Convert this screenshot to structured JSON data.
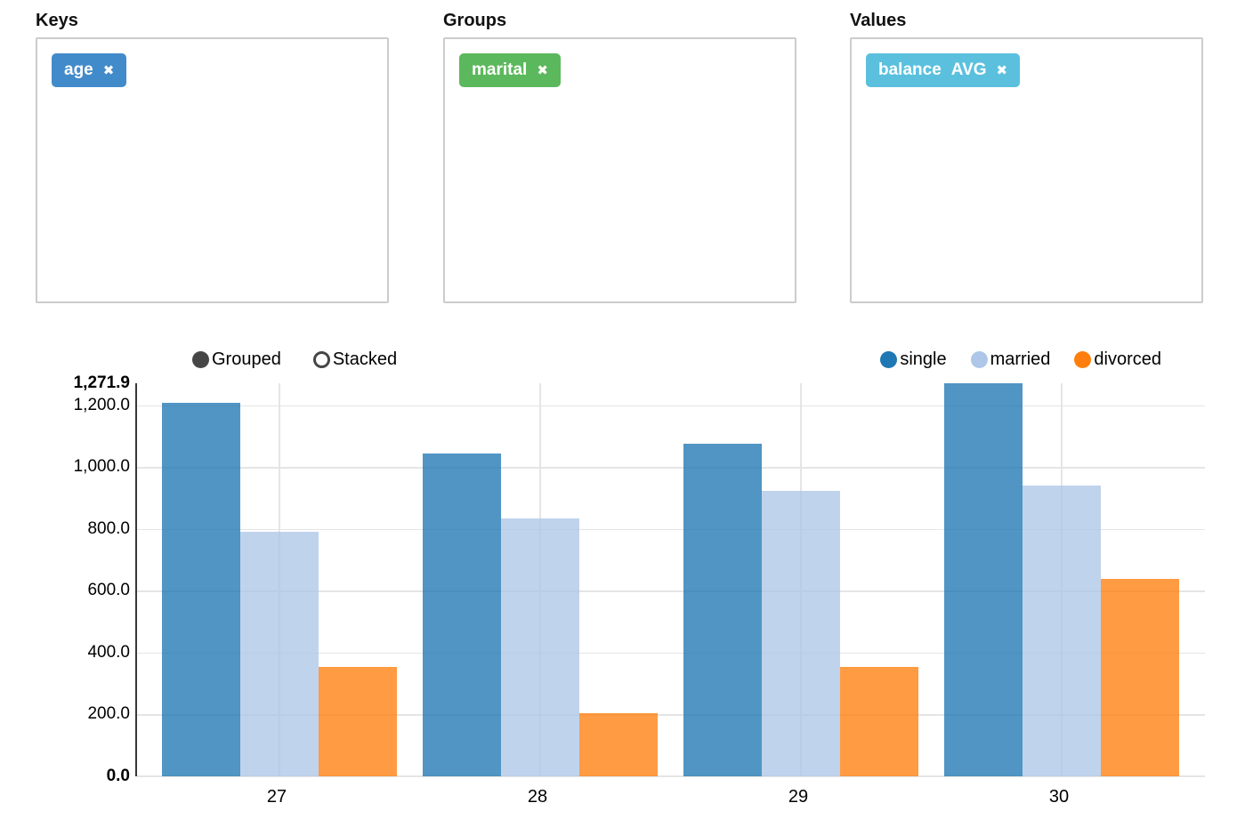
{
  "icons": {
    "remove": "✖"
  },
  "panels": [
    {
      "label": "Keys",
      "pills": [
        {
          "text": "age",
          "color": "#428bca"
        }
      ]
    },
    {
      "label": "Groups",
      "pills": [
        {
          "text": "marital",
          "color": "#5cb85c"
        }
      ]
    },
    {
      "label": "Values",
      "pills": [
        {
          "text": "balance",
          "aggregate": "AVG",
          "color": "#5bc0de"
        }
      ]
    }
  ],
  "chart": {
    "controls": [
      {
        "label": "Grouped",
        "selected": true
      },
      {
        "label": "Stacked",
        "selected": false
      }
    ],
    "control_color": "#464646"
  },
  "chart_data": {
    "type": "bar",
    "mode": "grouped",
    "categories": [
      "27",
      "28",
      "29",
      "30"
    ],
    "series": [
      {
        "name": "single",
        "color": "#1f77b4",
        "values": [
          1210,
          1045,
          1075,
          1271.9
        ]
      },
      {
        "name": "married",
        "color": "#aec7e8",
        "values": [
          790,
          835,
          925,
          940
        ]
      },
      {
        "name": "divorced",
        "color": "#ff7f0e",
        "values": [
          355,
          205,
          355,
          640
        ]
      }
    ],
    "ylim": [
      0,
      1271.9
    ],
    "yticks": [
      0,
      200,
      400,
      600,
      800,
      1000,
      1200
    ],
    "ytick_labels": [
      "0.0",
      "200.0",
      "400.0",
      "600.0",
      "800.0",
      "1,000.0",
      "1,200.0"
    ],
    "ymax_label": "1,271.9",
    "grid": true,
    "legend_position": "top-right"
  }
}
